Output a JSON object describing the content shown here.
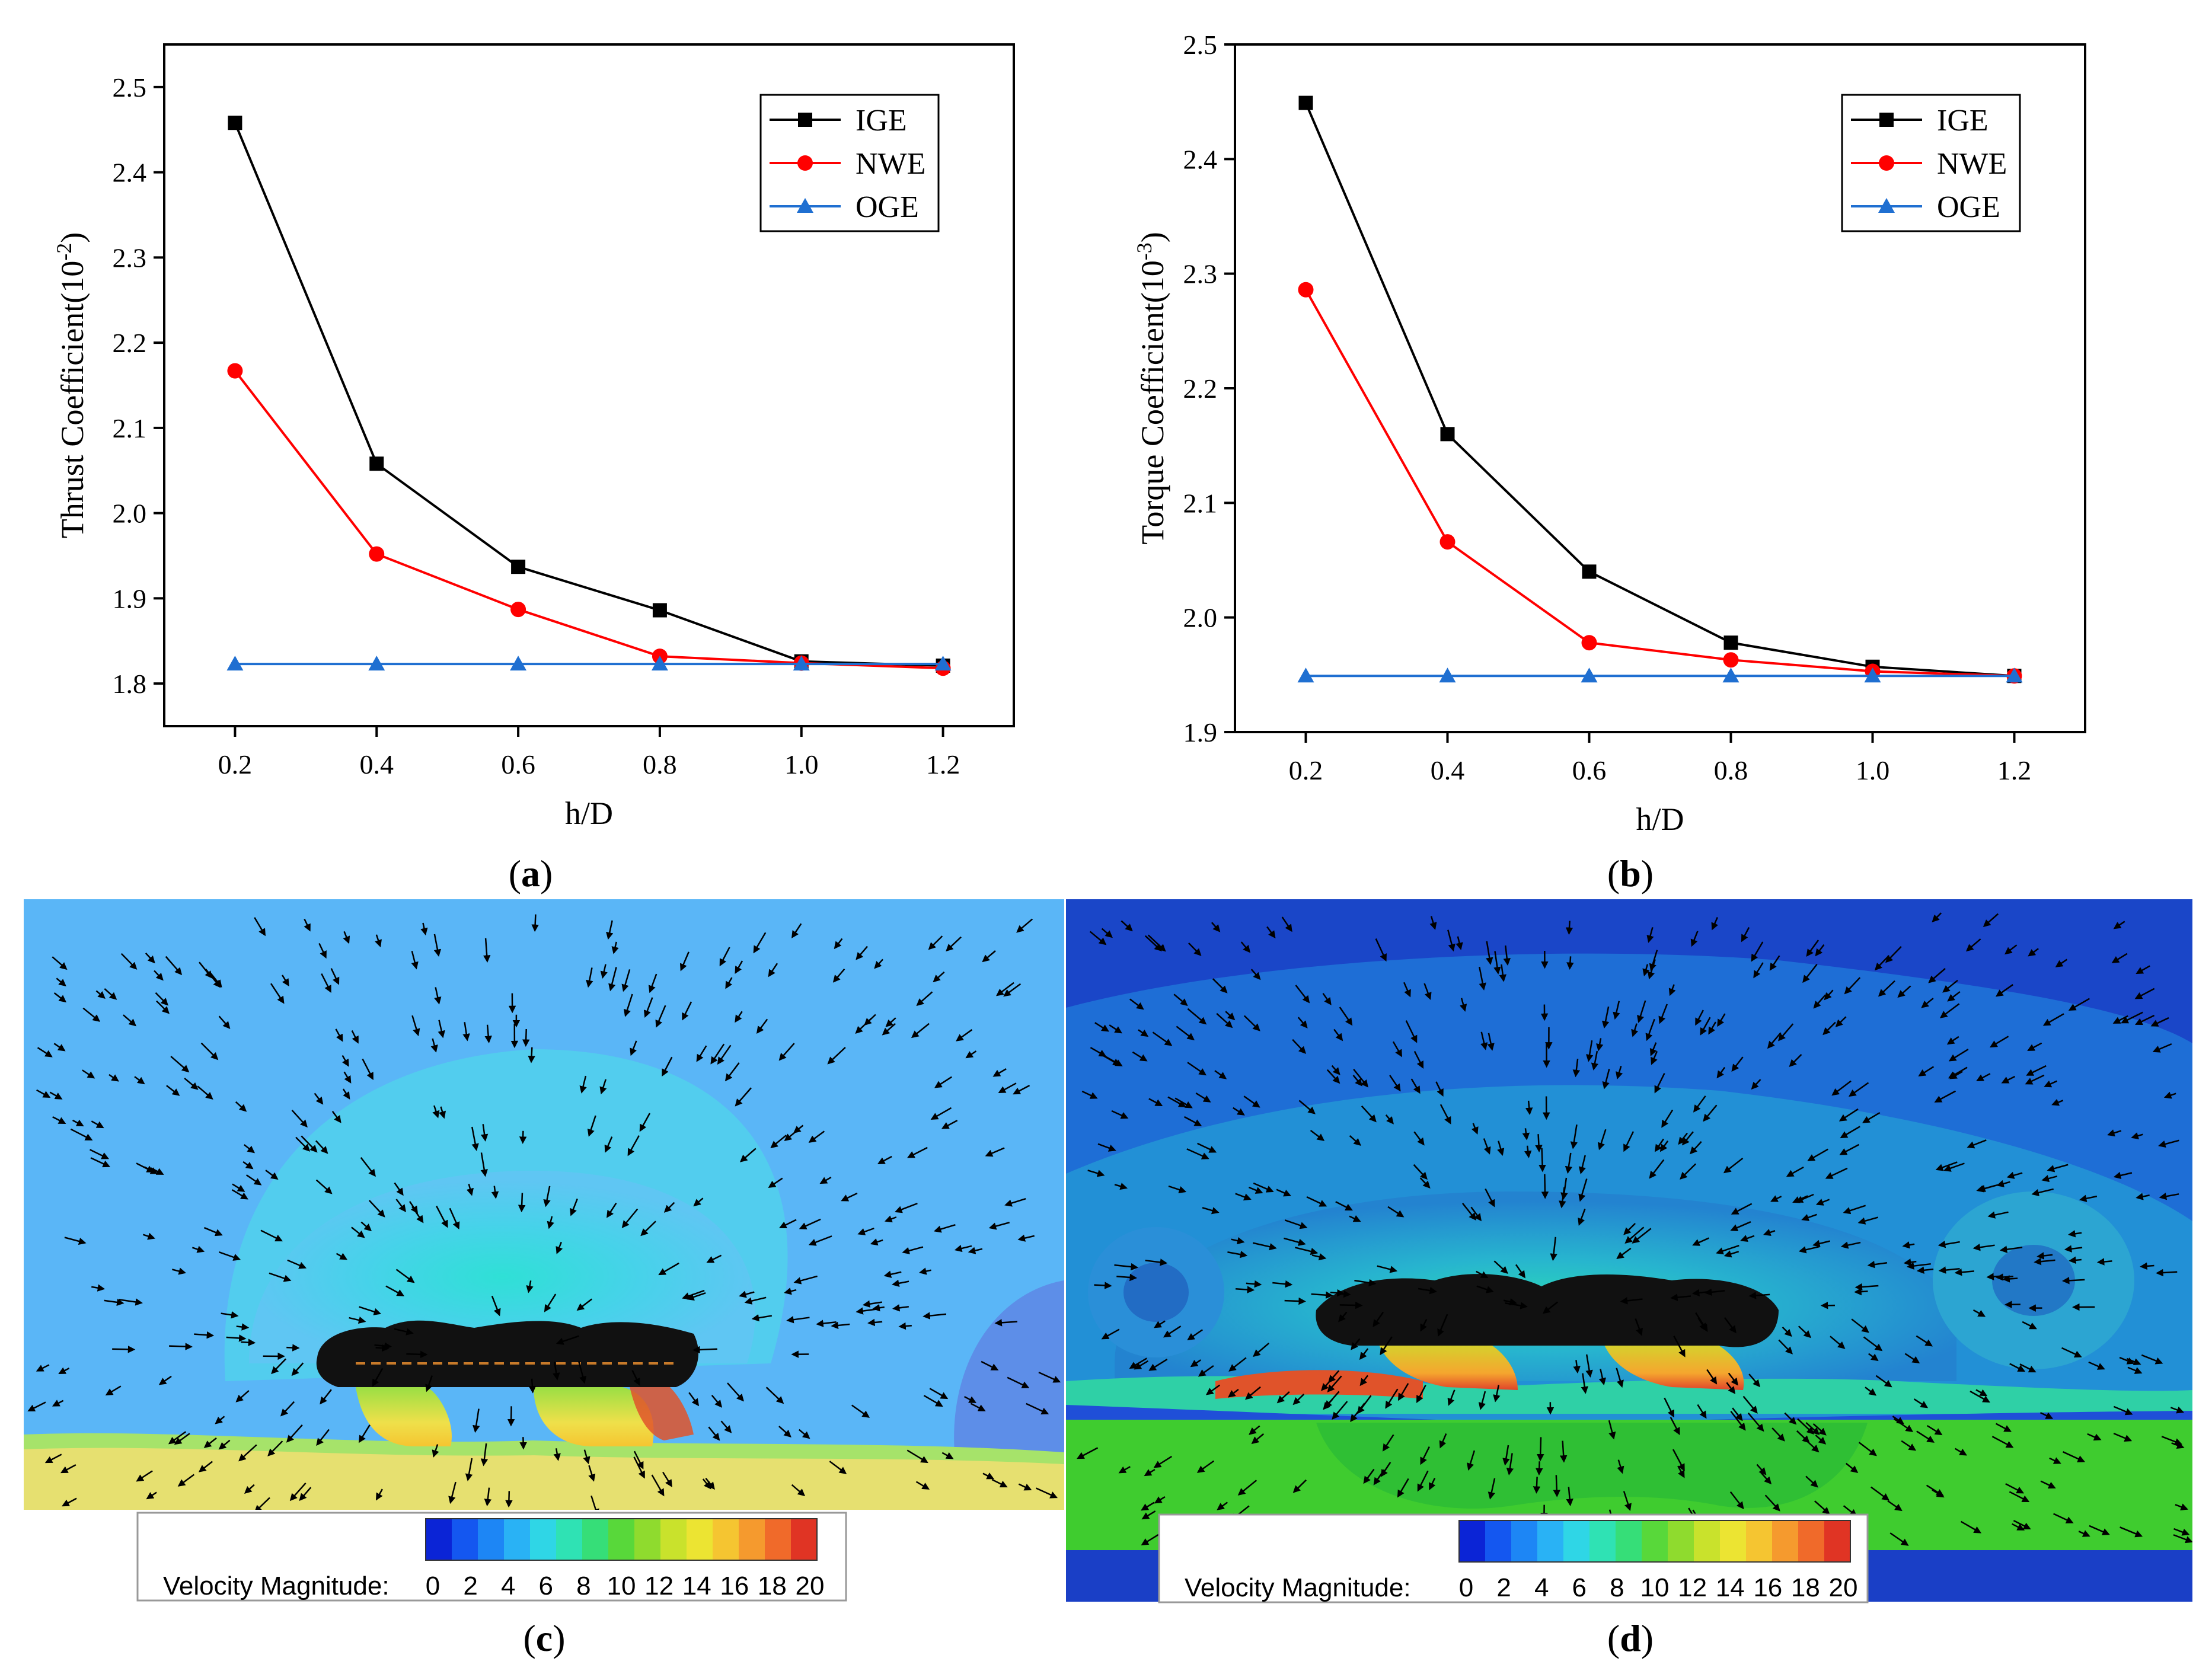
{
  "captions": {
    "a": "a",
    "b": "b",
    "c": "c",
    "d": "d"
  },
  "legend_entries": [
    {
      "name": "IGE",
      "color": "#000000",
      "marker": "square"
    },
    {
      "name": "NWE",
      "color": "#ff0000",
      "marker": "circle"
    },
    {
      "name": "OGE",
      "color": "#1f6fd1",
      "marker": "triangle"
    }
  ],
  "chart_data": [
    {
      "id": "a",
      "type": "line",
      "xlabel": "h/D",
      "ylabel": "Thrust Coefficient(10",
      "ylabel_exp": "-2",
      "ylabel_close": ")",
      "xlim": [
        0.1,
        1.3
      ],
      "ylim": [
        1.75,
        2.55
      ],
      "xticks": [
        0.2,
        0.4,
        0.6,
        0.8,
        1.0,
        1.2
      ],
      "xtick_labels": [
        "0.2",
        "0.4",
        "0.6",
        "0.8",
        "1.0",
        "1.2"
      ],
      "yticks": [
        1.8,
        1.9,
        2.0,
        2.1,
        2.2,
        2.3,
        2.4,
        2.5
      ],
      "ytick_labels": [
        "1.8",
        "1.9",
        "2.0",
        "2.1",
        "2.2",
        "2.3",
        "2.4",
        "2.5"
      ],
      "x": [
        0.2,
        0.4,
        0.6,
        0.8,
        1.0,
        1.2
      ],
      "series": [
        {
          "name": "IGE",
          "values": [
            2.458,
            2.058,
            1.937,
            1.886,
            1.826,
            1.821
          ]
        },
        {
          "name": "NWE",
          "values": [
            2.167,
            1.952,
            1.887,
            1.832,
            1.824,
            1.818
          ]
        },
        {
          "name": "OGE",
          "values": [
            1.823,
            1.823,
            1.823,
            1.823,
            1.823,
            1.823
          ]
        }
      ],
      "legend_position": "top-right"
    },
    {
      "id": "b",
      "type": "line",
      "xlabel": "h/D",
      "ylabel": "Torque Coefficient(10",
      "ylabel_exp": "-3",
      "ylabel_close": ")",
      "xlim": [
        0.1,
        1.3
      ],
      "ylim": [
        1.9,
        2.5
      ],
      "xticks": [
        0.2,
        0.4,
        0.6,
        0.8,
        1.0,
        1.2
      ],
      "xtick_labels": [
        "0.2",
        "0.4",
        "0.6",
        "0.8",
        "1.0",
        "1.2"
      ],
      "yticks": [
        1.9,
        2.0,
        2.1,
        2.2,
        2.3,
        2.4,
        2.5
      ],
      "ytick_labels": [
        "1.9",
        "2.0",
        "2.1",
        "2.2",
        "2.3",
        "2.4",
        "2.5"
      ],
      "x": [
        0.2,
        0.4,
        0.6,
        0.8,
        1.0,
        1.2
      ],
      "series": [
        {
          "name": "IGE",
          "values": [
            2.449,
            2.16,
            2.04,
            1.978,
            1.957,
            1.949
          ]
        },
        {
          "name": "NWE",
          "values": [
            2.286,
            2.066,
            1.978,
            1.963,
            1.953,
            1.949
          ]
        },
        {
          "name": "OGE",
          "values": [
            1.949,
            1.949,
            1.949,
            1.949,
            1.949,
            1.949
          ]
        }
      ],
      "legend_position": "top-right"
    }
  ],
  "contour_panels": {
    "colorbar_title": "Velocity Magnitude:",
    "colorbar_ticks": [
      "0",
      "2",
      "4",
      "6",
      "8",
      "10",
      "12",
      "14",
      "16",
      "18",
      "20"
    ],
    "colorbar_colors": [
      "#0b24d6",
      "#1457f0",
      "#1d86f5",
      "#29b2f5",
      "#2fd6e6",
      "#2fe2b4",
      "#36de78",
      "#58d83a",
      "#8fdb2e",
      "#c9e22c",
      "#ece432",
      "#f5c531",
      "#f59a2e",
      "#f06a2a",
      "#e03424"
    ]
  }
}
